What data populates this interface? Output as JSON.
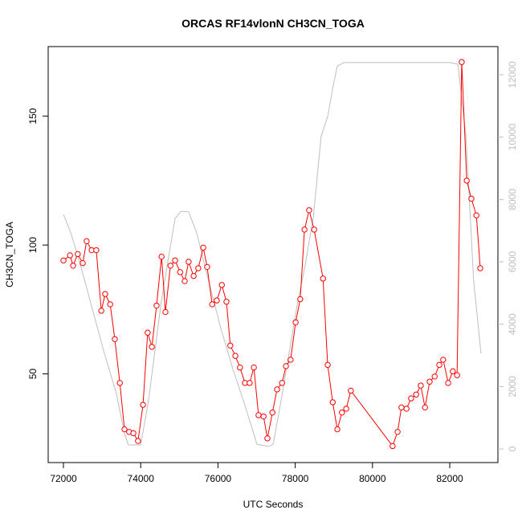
{
  "chart_data": {
    "type": "line",
    "title": "ORCAS RF14vlonN CH3CN_TOGA",
    "x_label": "UTC Seconds",
    "y_label": "CH3CN_TOGA",
    "xlim": [
      71605,
      83247
    ],
    "ylim": [
      15.6,
      177
    ],
    "y2lim": [
      -438,
      12902
    ],
    "xticks": [
      72000,
      74000,
      76000,
      78000,
      80000,
      82000
    ],
    "yticks": [
      50,
      100,
      150
    ],
    "y2ticks": [
      0,
      2000,
      4000,
      6000,
      8000,
      10000,
      12000
    ],
    "series": [
      {
        "name": "CH3CN_TOGA",
        "color": "#ff0000",
        "markers": true,
        "x": [
          72000,
          72170,
          72250,
          72370,
          72500,
          72600,
          72730,
          72850,
          72980,
          73080,
          73210,
          73330,
          73460,
          73580,
          73700,
          73810,
          73930,
          74060,
          74180,
          74290,
          74410,
          74540,
          74640,
          74770,
          74890,
          75020,
          75140,
          75240,
          75370,
          75490,
          75620,
          75720,
          75850,
          75970,
          76100,
          76220,
          76320,
          76450,
          76570,
          76700,
          76820,
          76930,
          77050,
          77180,
          77280,
          77410,
          77530,
          77660,
          77760,
          77880,
          78010,
          78130,
          78240,
          78360,
          78490,
          78720,
          78840,
          78970,
          79090,
          79210,
          79320,
          79440,
          80520,
          80650,
          80750,
          80880,
          81000,
          81130,
          81250,
          81360,
          81480,
          81610,
          81730,
          81830,
          81960,
          82080,
          82190,
          82310,
          82440,
          82560,
          82690,
          82790
        ],
        "values": [
          94,
          96,
          92,
          96.5,
          93,
          101.5,
          98,
          98,
          74.5,
          81,
          77,
          63.5,
          46.5,
          28.5,
          27.5,
          27,
          24,
          38,
          66,
          60.5,
          76.5,
          95.5,
          74,
          92,
          94,
          89.5,
          86,
          93.5,
          88,
          91,
          99,
          91.5,
          77,
          78.5,
          84.5,
          78,
          61,
          57,
          52.5,
          46.5,
          46.5,
          52.5,
          34,
          33.5,
          25,
          35,
          44,
          46.5,
          53,
          55.5,
          70,
          79,
          106,
          113.5,
          106,
          87,
          53.5,
          39,
          28.5,
          35,
          36.5,
          43.5,
          22,
          27.5,
          37,
          36.5,
          40.5,
          42,
          45.5,
          37,
          47,
          49,
          53.5,
          55.5,
          46.5,
          51,
          49.5,
          171,
          125,
          118,
          111.5,
          91
        ]
      },
      {
        "color": "#bebebe",
        "axis": "y2",
        "markers": false,
        "x": [
          72000,
          72190,
          72440,
          72750,
          73060,
          73370,
          73580,
          73680,
          74000,
          74200,
          74520,
          74720,
          74890,
          75040,
          75240,
          75450,
          75760,
          76080,
          76390,
          76700,
          77010,
          77320,
          77430,
          77630,
          77840,
          78050,
          78260,
          78470,
          78670,
          78840,
          78990,
          79090,
          79260,
          80130,
          82000,
          82210,
          82420,
          82620,
          82810
        ],
        "values": [
          7520,
          6930,
          5900,
          4480,
          3060,
          1780,
          490,
          130,
          130,
          1520,
          4610,
          6150,
          7390,
          7620,
          7600,
          6930,
          5380,
          3840,
          2550,
          1390,
          150,
          80,
          150,
          1520,
          3060,
          4610,
          5900,
          7440,
          10020,
          10660,
          11690,
          12280,
          12390,
          12390,
          12390,
          12340,
          10020,
          5380,
          3060
        ]
      }
    ]
  }
}
